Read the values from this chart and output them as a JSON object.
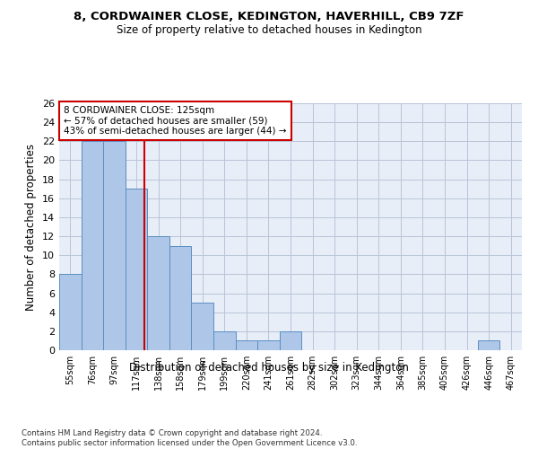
{
  "title": "8, CORDWAINER CLOSE, KEDINGTON, HAVERHILL, CB9 7ZF",
  "subtitle": "Size of property relative to detached houses in Kedington",
  "xlabel": "Distribution of detached houses by size in Kedington",
  "ylabel": "Number of detached properties",
  "bin_labels": [
    "55sqm",
    "76sqm",
    "97sqm",
    "117sqm",
    "138sqm",
    "158sqm",
    "179sqm",
    "199sqm",
    "220sqm",
    "241sqm",
    "261sqm",
    "282sqm",
    "302sqm",
    "323sqm",
    "344sqm",
    "364sqm",
    "385sqm",
    "405sqm",
    "426sqm",
    "446sqm",
    "467sqm"
  ],
  "bar_heights": [
    8,
    22,
    22,
    17,
    12,
    11,
    5,
    2,
    1,
    1,
    2,
    0,
    0,
    0,
    0,
    0,
    0,
    0,
    0,
    1,
    0
  ],
  "bar_color": "#aec6e8",
  "bar_edge_color": "#5a8fc2",
  "annotation_text": "8 CORDWAINER CLOSE: 125sqm\n← 57% of detached houses are smaller (59)\n43% of semi-detached houses are larger (44) →",
  "annotation_box_color": "#ffffff",
  "annotation_box_edge_color": "#cc0000",
  "ylim": [
    0,
    26
  ],
  "yticks": [
    0,
    2,
    4,
    6,
    8,
    10,
    12,
    14,
    16,
    18,
    20,
    22,
    24,
    26
  ],
  "footnote": "Contains HM Land Registry data © Crown copyright and database right 2024.\nContains public sector information licensed under the Open Government Licence v3.0.",
  "bg_color": "#e8eef8"
}
